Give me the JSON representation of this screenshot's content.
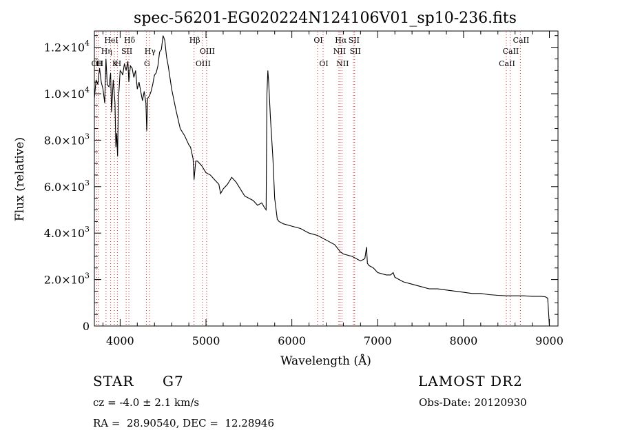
{
  "chart_data": {
    "type": "line",
    "title": "spec-56201-EG020224N124106V01_sp10-236.fits",
    "xlabel": "Wavelength (Å)",
    "ylabel": "Flux (relative)",
    "xlim": [
      3700,
      9100
    ],
    "ylim": [
      0,
      12700
    ],
    "x_ticks": [
      4000,
      5000,
      6000,
      7000,
      8000,
      9000
    ],
    "y_ticks": [
      {
        "value": 0,
        "mant": "0",
        "exp": ""
      },
      {
        "value": 2000,
        "mant": "2.0×10",
        "exp": "3"
      },
      {
        "value": 4000,
        "mant": "4.0×10",
        "exp": "3"
      },
      {
        "value": 6000,
        "mant": "6.0×10",
        "exp": "3"
      },
      {
        "value": 8000,
        "mant": "8.0×10",
        "exp": "3"
      },
      {
        "value": 10000,
        "mant": "1.0×10",
        "exp": "4"
      },
      {
        "value": 12000,
        "mant": "1.2×10",
        "exp": "4"
      }
    ],
    "series": [
      {
        "name": "flux",
        "x": [
          3700,
          3720,
          3740,
          3760,
          3780,
          3800,
          3820,
          3835,
          3850,
          3870,
          3889,
          3900,
          3920,
          3940,
          3950,
          3960,
          3970,
          3980,
          3990,
          4000,
          4020,
          4030,
          4050,
          4070,
          4090,
          4101,
          4120,
          4140,
          4160,
          4180,
          4200,
          4220,
          4240,
          4260,
          4280,
          4300,
          4310,
          4320,
          4340,
          4360,
          4380,
          4400,
          4420,
          4440,
          4460,
          4480,
          4500,
          4520,
          4540,
          4560,
          4600,
          4650,
          4700,
          4750,
          4800,
          4820,
          4850,
          4861,
          4880,
          4900,
          4950,
          5000,
          5050,
          5100,
          5150,
          5170,
          5200,
          5250,
          5300,
          5350,
          5400,
          5450,
          5500,
          5550,
          5600,
          5650,
          5680,
          5700,
          5710,
          5720,
          5730,
          5750,
          5780,
          5800,
          5830,
          5850,
          5900,
          6000,
          6100,
          6200,
          6300,
          6400,
          6500,
          6563,
          6600,
          6700,
          6800,
          6850,
          6870,
          6880,
          6900,
          6950,
          7000,
          7100,
          7150,
          7180,
          7200,
          7250,
          7300,
          7400,
          7500,
          7600,
          7700,
          7800,
          7900,
          8000,
          8100,
          8200,
          8300,
          8400,
          8500,
          8600,
          8700,
          8800,
          8900,
          8950,
          8980,
          8990,
          9000
        ],
        "y": [
          9800,
          10600,
          10400,
          11100,
          10500,
          10200,
          9600,
          11500,
          10400,
          10300,
          10900,
          9200,
          10600,
          9600,
          7700,
          8300,
          7300,
          9800,
          10300,
          11000,
          10900,
          10800,
          11300,
          11000,
          11400,
          10500,
          11200,
          11100,
          10700,
          11000,
          10200,
          10500,
          10100,
          9700,
          10100,
          9600,
          8400,
          9800,
          9900,
          10100,
          10400,
          10800,
          10900,
          11200,
          11800,
          11900,
          12500,
          12300,
          11600,
          11200,
          10200,
          9300,
          8500,
          8200,
          7800,
          7700,
          7200,
          6300,
          7100,
          7100,
          6900,
          6600,
          6500,
          6300,
          6100,
          5700,
          5900,
          6100,
          6400,
          6200,
          5900,
          5600,
          5500,
          5400,
          5200,
          5300,
          5100,
          5000,
          10000,
          11000,
          10500,
          9000,
          7200,
          5500,
          4600,
          4500,
          4400,
          4300,
          4200,
          4000,
          3900,
          3700,
          3500,
          3200,
          3100,
          3000,
          2800,
          2900,
          3400,
          2700,
          2600,
          2500,
          2300,
          2200,
          2200,
          2300,
          2100,
          2000,
          1900,
          1800,
          1700,
          1600,
          1600,
          1550,
          1500,
          1450,
          1400,
          1400,
          1350,
          1320,
          1300,
          1300,
          1300,
          1280,
          1280,
          1260,
          1200,
          600,
          0
        ]
      }
    ],
    "lines": [
      {
        "wl": 3727,
        "label": "OII",
        "row": 2,
        "side": "r"
      },
      {
        "wl": 3750,
        "label": "H",
        "row": 2,
        "side": "r"
      },
      {
        "wl": 3835,
        "label": "Hη",
        "row": 1,
        "side": "r"
      },
      {
        "wl": 3889,
        "label": "HeI",
        "row": 0,
        "side": "r"
      },
      {
        "wl": 3933,
        "label": "K",
        "row": 2,
        "side": "r"
      },
      {
        "wl": 3968,
        "label": "H",
        "row": 2,
        "side": "r"
      },
      {
        "wl": 4070,
        "label": "SII",
        "row": 1,
        "side": "r"
      },
      {
        "wl": 4102,
        "label": "Hδ",
        "row": 0,
        "side": "r"
      },
      {
        "wl": 4305,
        "label": "G",
        "row": 2,
        "side": "r"
      },
      {
        "wl": 4341,
        "label": "Hγ",
        "row": 1,
        "side": "r"
      },
      {
        "wl": 4861,
        "label": "Hβ",
        "row": 0,
        "side": "r"
      },
      {
        "wl": 4959,
        "label": "OIII",
        "row": 2,
        "side": "r"
      },
      {
        "wl": 5007,
        "label": "OIII",
        "row": 1,
        "side": "r"
      },
      {
        "wl": 6300,
        "label": "OI",
        "row": 0,
        "side": "r"
      },
      {
        "wl": 6364,
        "label": "OI",
        "row": 2,
        "side": "r"
      },
      {
        "wl": 6548,
        "label": "NII",
        "row": 1,
        "side": "r"
      },
      {
        "wl": 6563,
        "label": "Hα",
        "row": 0,
        "side": "r"
      },
      {
        "wl": 6583,
        "label": "NII",
        "row": 2,
        "side": "r"
      },
      {
        "wl": 6716,
        "label": "SII",
        "row": 0,
        "side": "r"
      },
      {
        "wl": 6731,
        "label": "SII",
        "row": 1,
        "side": "r"
      },
      {
        "wl": 8498,
        "label": "CaII",
        "row": 2,
        "side": "r"
      },
      {
        "wl": 8542,
        "label": "CaII",
        "row": 1,
        "side": "r"
      },
      {
        "wl": 8662,
        "label": "CaII",
        "row": 0,
        "side": "r"
      }
    ]
  },
  "info": {
    "class_label": "STAR",
    "subclass": "G7",
    "survey": "LAMOST DR2",
    "redshift": "cz = -4.0 ± 2.1 km/s",
    "obs_date": "Obs-Date: 20120930",
    "coords": "RA =  28.90540, DEC =  12.28946"
  },
  "colors": {
    "line_marker": "#d02020",
    "spectrum": "#000000"
  }
}
